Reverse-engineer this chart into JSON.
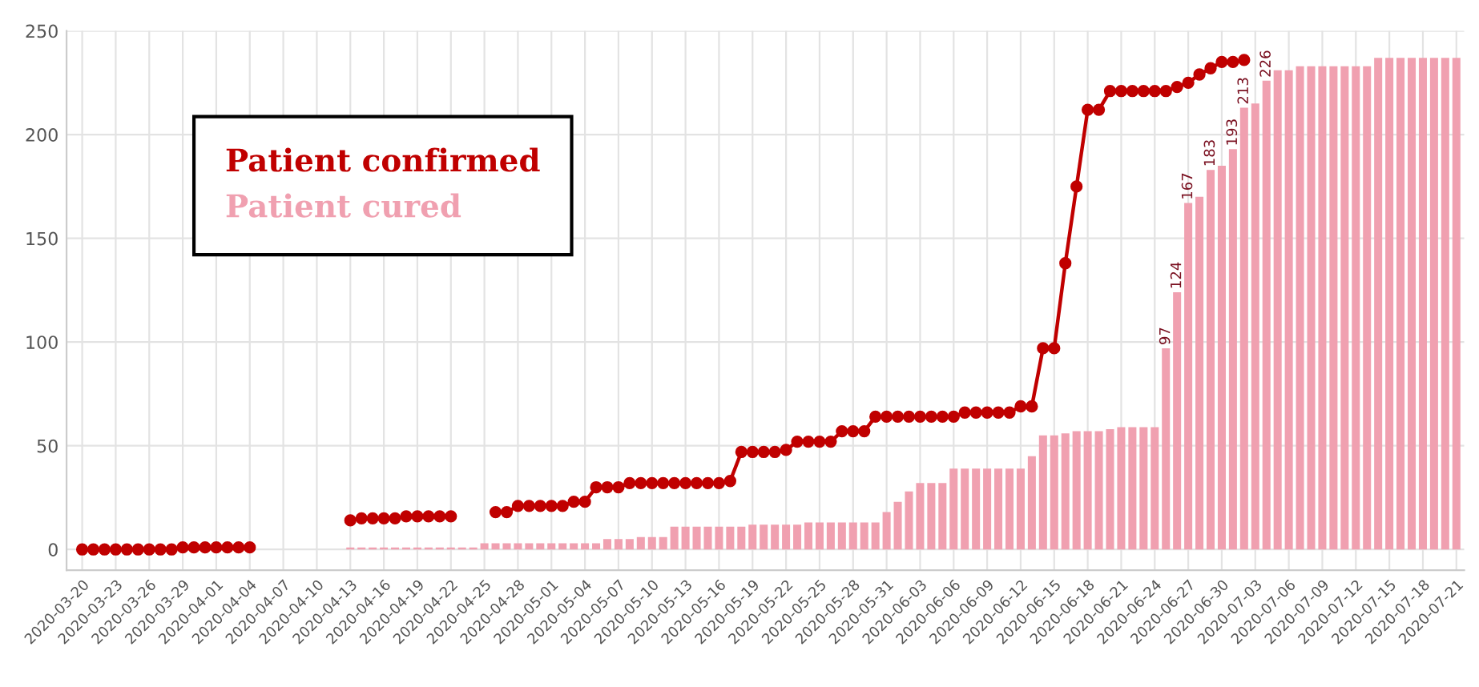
{
  "chart_data": {
    "type": "bar",
    "categories": [
      "2020-03-20",
      null,
      null,
      "2020-03-23",
      null,
      null,
      "2020-03-26",
      null,
      null,
      "2020-03-29",
      null,
      null,
      "2020-04-01",
      null,
      null,
      "2020-04-04",
      null,
      null,
      "2020-04-07",
      null,
      null,
      "2020-04-10",
      null,
      null,
      "2020-04-13",
      null,
      null,
      "2020-04-16",
      null,
      null,
      "2020-04-19",
      null,
      null,
      "2020-04-22",
      null,
      null,
      "2020-04-25",
      null,
      null,
      "2020-04-28",
      null,
      null,
      "2020-05-01",
      null,
      null,
      "2020-05-04",
      null,
      null,
      "2020-05-07",
      null,
      null,
      "2020-05-10",
      null,
      null,
      "2020-05-13",
      null,
      null,
      "2020-05-16",
      null,
      null,
      "2020-05-19",
      null,
      null,
      "2020-05-22",
      null,
      null,
      "2020-05-25",
      null,
      null,
      "2020-05-28",
      null,
      null,
      "2020-05-31",
      null,
      null,
      "2020-06-03",
      null,
      null,
      "2020-06-06",
      null,
      null,
      "2020-06-09",
      null,
      null,
      "2020-06-12",
      null,
      null,
      "2020-06-15",
      null,
      null,
      "2020-06-18",
      null,
      null,
      "2020-06-21",
      null,
      null,
      "2020-06-24",
      null,
      null,
      "2020-06-27",
      null,
      null,
      "2020-06-30",
      null,
      null,
      "2020-07-03",
      null,
      null,
      "2020-07-06",
      null,
      null,
      "2020-07-09",
      null,
      null,
      "2020-07-12",
      null,
      null,
      "2020-07-15",
      null,
      null,
      "2020-07-18",
      null,
      null,
      "2020-07-21"
    ],
    "series": [
      {
        "name": "Patient cured",
        "color": "#f0a0b0",
        "values": [
          0,
          0,
          0,
          0,
          0,
          0,
          0,
          0,
          0,
          0,
          0,
          0,
          0,
          0,
          0,
          0,
          0,
          0,
          0,
          0,
          0,
          0,
          0,
          0,
          1,
          1,
          1,
          1,
          1,
          1,
          1,
          1,
          1,
          1,
          1,
          1,
          3,
          3,
          3,
          3,
          3,
          3,
          3,
          3,
          3,
          3,
          3,
          5,
          5,
          5,
          6,
          6,
          6,
          11,
          11,
          11,
          11,
          11,
          11,
          11,
          12,
          12,
          12,
          12,
          12,
          13,
          13,
          13,
          13,
          13,
          13,
          13,
          18,
          23,
          28,
          32,
          32,
          32,
          39,
          39,
          39,
          39,
          39,
          39,
          39,
          45,
          55,
          55,
          56,
          57,
          57,
          57,
          58,
          59,
          59,
          59,
          59,
          97,
          124,
          167,
          170,
          183,
          185,
          193,
          213,
          215,
          226,
          231,
          231,
          233,
          233,
          233,
          233,
          233,
          233,
          233,
          237,
          237,
          237,
          237,
          237,
          237,
          237,
          237
        ],
        "value_labels": [
          null,
          null,
          null,
          null,
          null,
          null,
          null,
          null,
          null,
          null,
          null,
          null,
          null,
          null,
          null,
          null,
          null,
          null,
          null,
          null,
          null,
          null,
          null,
          null,
          null,
          null,
          null,
          null,
          null,
          null,
          null,
          null,
          null,
          null,
          null,
          null,
          null,
          null,
          null,
          null,
          null,
          null,
          null,
          null,
          null,
          null,
          null,
          null,
          null,
          null,
          null,
          null,
          null,
          null,
          null,
          null,
          null,
          null,
          null,
          null,
          null,
          null,
          null,
          null,
          null,
          null,
          null,
          null,
          null,
          null,
          null,
          null,
          null,
          null,
          null,
          null,
          null,
          null,
          null,
          null,
          null,
          null,
          null,
          null,
          null,
          null,
          null,
          null,
          null,
          null,
          null,
          null,
          null,
          null,
          null,
          null,
          null,
          "97",
          "124",
          "167",
          null,
          "183",
          null,
          "193",
          "213",
          null,
          "226",
          null,
          null,
          null,
          null,
          null,
          null,
          null,
          null,
          null,
          null,
          null,
          null,
          null,
          null,
          null,
          null,
          null
        ]
      },
      {
        "name": "Patient confirmed",
        "type": "line",
        "color": "#c00000",
        "marker": "circle",
        "values": [
          0,
          0,
          0,
          0,
          0,
          0,
          0,
          0,
          0,
          1,
          1,
          1,
          1,
          1,
          1,
          1,
          null,
          null,
          null,
          null,
          null,
          null,
          null,
          null,
          14,
          15,
          15,
          15,
          15,
          16,
          16,
          16,
          16,
          16,
          null,
          null,
          null,
          18,
          18,
          21,
          21,
          21,
          21,
          21,
          23,
          23,
          30,
          30,
          30,
          32,
          32,
          32,
          32,
          32,
          32,
          32,
          32,
          32,
          33,
          47,
          47,
          47,
          47,
          48,
          52,
          52,
          52,
          52,
          57,
          57,
          57,
          64,
          64,
          64,
          64,
          64,
          64,
          64,
          64,
          66,
          66,
          66,
          66,
          66,
          69,
          69,
          97,
          97,
          138,
          175,
          212,
          212,
          221,
          221,
          221,
          221,
          221,
          221,
          223,
          225,
          229,
          232,
          235,
          235,
          236,
          null,
          null,
          null,
          null,
          null,
          null,
          null,
          null,
          null,
          null,
          null,
          null,
          null,
          null,
          null,
          null,
          null,
          null,
          null
        ]
      }
    ],
    "ylim": [
      -10,
      250
    ],
    "yticks": [
      0,
      50,
      100,
      150,
      200,
      250
    ],
    "grid": true,
    "legend": "top left"
  }
}
